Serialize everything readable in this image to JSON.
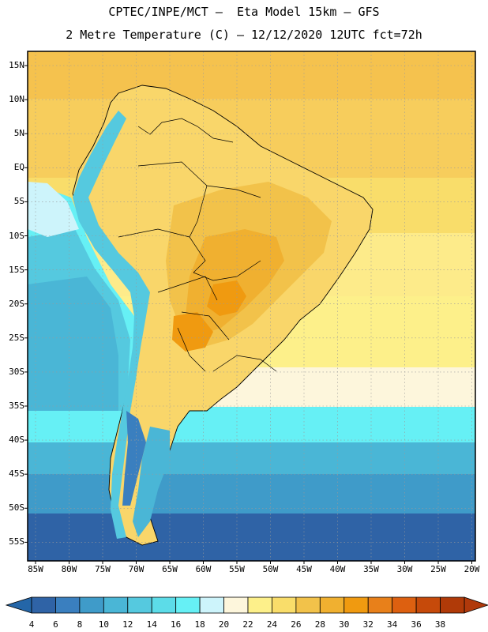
{
  "header": {
    "line1": "CPTEC/INPE/MCT –  Eta Model 15km – GFS",
    "line2": "2 Metre Temperature (C) – 12/12/2020 12UTC fct=72h"
  },
  "map": {
    "lat_labels": [
      "15N",
      "10N",
      "5N",
      "EQ",
      "5S",
      "10S",
      "15S",
      "20S",
      "25S",
      "30S",
      "35S",
      "40S",
      "45S",
      "50S",
      "55S"
    ],
    "lon_labels": [
      "85W",
      "80W",
      "75W",
      "70W",
      "65W",
      "60W",
      "55W",
      "50W",
      "45W",
      "40W",
      "35W",
      "30W",
      "25W",
      "20W"
    ]
  },
  "colorbar": {
    "labels": [
      "4",
      "6",
      "8",
      "10",
      "12",
      "14",
      "16",
      "18",
      "20",
      "22",
      "24",
      "26",
      "28",
      "30",
      "32",
      "34",
      "36",
      "38"
    ],
    "colors": [
      "#2f63a6",
      "#3a7fbf",
      "#3f9bc9",
      "#4ab6d6",
      "#55c9df",
      "#5cdce8",
      "#66f0f5",
      "#cdf4fb",
      "#fdf6dc",
      "#fdf08a",
      "#f9dd6a",
      "#f2c24a",
      "#f0b030",
      "#f09a10",
      "#e8801a",
      "#dd6010",
      "#c64a0a",
      "#b03a08"
    ],
    "under_color": "#2466a8",
    "over_color": "#b0390b"
  }
}
